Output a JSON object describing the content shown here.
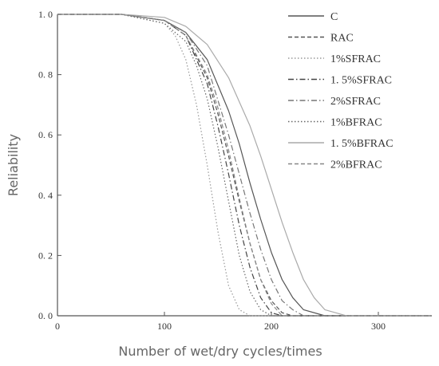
{
  "chart_data": {
    "type": "line",
    "title": "",
    "xlabel": "Number of wet/dry cycles/times",
    "ylabel": "Reliability",
    "xlim": [
      0,
      350
    ],
    "ylim": [
      0,
      1.0
    ],
    "xticks": [
      "0",
      "100",
      "200",
      "300"
    ],
    "yticks": [
      "0. 0",
      "0. 2",
      "0. 4",
      "0. 6",
      "0. 8",
      "1. 0"
    ],
    "grid": false,
    "legend_position": "top-right",
    "series": [
      {
        "name": "C",
        "dash": "solid",
        "color": "#555555",
        "x": [
          0,
          60,
          100,
          120,
          140,
          160,
          170,
          180,
          190,
          200,
          210,
          220,
          230,
          250,
          350
        ],
        "y": [
          1.0,
          1.0,
          0.98,
          0.94,
          0.85,
          0.68,
          0.57,
          0.44,
          0.32,
          0.21,
          0.12,
          0.06,
          0.02,
          0.0,
          0.0
        ]
      },
      {
        "name": "RAC",
        "dash": "dashed",
        "color": "#555555",
        "x": [
          0,
          60,
          100,
          120,
          140,
          150,
          160,
          170,
          180,
          190,
          200,
          210,
          220,
          350
        ],
        "y": [
          1.0,
          1.0,
          0.98,
          0.93,
          0.79,
          0.67,
          0.53,
          0.38,
          0.24,
          0.12,
          0.05,
          0.01,
          0.0,
          0.0
        ]
      },
      {
        "name": "1%SFRAC",
        "dash": "dotted",
        "color": "#999999",
        "x": [
          0,
          60,
          100,
          110,
          120,
          130,
          140,
          150,
          160,
          170,
          180,
          350
        ],
        "y": [
          1.0,
          1.0,
          0.97,
          0.93,
          0.85,
          0.7,
          0.5,
          0.28,
          0.1,
          0.02,
          0.0,
          0.0
        ]
      },
      {
        "name": "1. 5%SFRAC",
        "dash": "dashdot",
        "color": "#444444",
        "x": [
          0,
          60,
          100,
          120,
          140,
          150,
          160,
          170,
          180,
          190,
          200,
          210,
          350
        ],
        "y": [
          1.0,
          1.0,
          0.98,
          0.93,
          0.77,
          0.63,
          0.47,
          0.3,
          0.16,
          0.06,
          0.01,
          0.0,
          0.0
        ]
      },
      {
        "name": "2%SFRAC",
        "dash": "dashdot",
        "color": "#777777",
        "x": [
          0,
          60,
          100,
          120,
          140,
          160,
          170,
          180,
          190,
          200,
          210,
          220,
          230,
          350
        ],
        "y": [
          1.0,
          1.0,
          0.98,
          0.94,
          0.83,
          0.6,
          0.47,
          0.34,
          0.22,
          0.12,
          0.05,
          0.02,
          0.0,
          0.0
        ]
      },
      {
        "name": "1%BFRAC",
        "dash": "dotted",
        "color": "#666666",
        "x": [
          0,
          60,
          100,
          120,
          130,
          140,
          150,
          160,
          170,
          180,
          190,
          200,
          350
        ],
        "y": [
          1.0,
          1.0,
          0.97,
          0.91,
          0.83,
          0.72,
          0.56,
          0.38,
          0.2,
          0.08,
          0.02,
          0.0,
          0.0
        ]
      },
      {
        "name": "1. 5%BFRAC",
        "dash": "solid",
        "color": "#aaaaaa",
        "x": [
          0,
          60,
          100,
          120,
          140,
          160,
          180,
          190,
          200,
          210,
          220,
          230,
          240,
          250,
          260,
          270,
          350
        ],
        "y": [
          1.0,
          1.0,
          0.99,
          0.96,
          0.9,
          0.79,
          0.63,
          0.53,
          0.42,
          0.31,
          0.21,
          0.12,
          0.06,
          0.02,
          0.01,
          0.0,
          0.0
        ]
      },
      {
        "name": "2%BFRAC",
        "dash": "dashed",
        "color": "#888888",
        "x": [
          0,
          60,
          100,
          120,
          140,
          150,
          160,
          170,
          180,
          190,
          200,
          210,
          350
        ],
        "y": [
          1.0,
          1.0,
          0.98,
          0.93,
          0.8,
          0.69,
          0.55,
          0.39,
          0.24,
          0.12,
          0.04,
          0.0,
          0.0
        ]
      }
    ]
  }
}
